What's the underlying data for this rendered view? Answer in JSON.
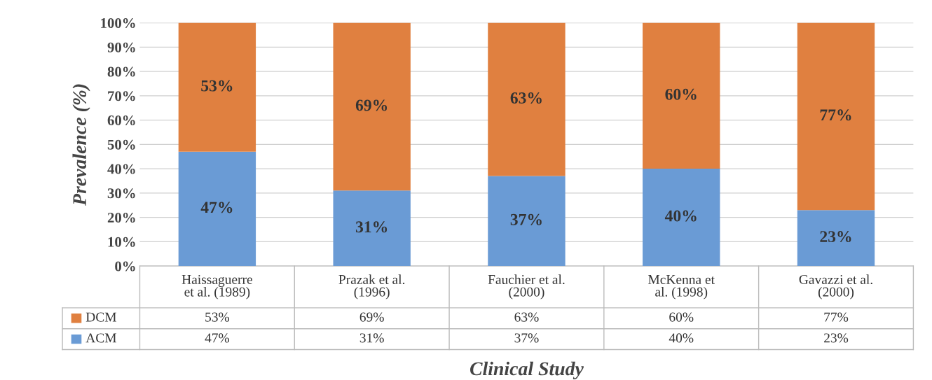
{
  "chart_data": {
    "type": "bar",
    "stacked": true,
    "xlabel": "Clinical Study",
    "ylabel": "Prevalence (%)",
    "categories": [
      "Haissaguerre\net al. (1989)",
      "Prazak et al.\n(1996)",
      "Fauchier et al.\n(2000)",
      "McKenna et\nal. (1998)",
      "Gavazzi et al.\n(2000)"
    ],
    "series": [
      {
        "name": "ACM",
        "color": "#6a9bd5",
        "values": [
          47,
          31,
          37,
          40,
          23
        ],
        "value_labels": [
          "47%",
          "31%",
          "37%",
          "40%",
          "23%"
        ]
      },
      {
        "name": "DCM",
        "color": "#e08040",
        "values": [
          53,
          69,
          63,
          60,
          77
        ],
        "value_labels": [
          "53%",
          "69%",
          "63%",
          "60%",
          "77%"
        ]
      }
    ],
    "ylim": [
      0,
      100
    ],
    "yticks": [
      {
        "value": 0,
        "label": "0%"
      },
      {
        "value": 10,
        "label": "10%"
      },
      {
        "value": 20,
        "label": "20%"
      },
      {
        "value": 30,
        "label": "30%"
      },
      {
        "value": 40,
        "label": "40%"
      },
      {
        "value": 50,
        "label": "50%"
      },
      {
        "value": 60,
        "label": "60%"
      },
      {
        "value": 70,
        "label": "70%"
      },
      {
        "value": 80,
        "label": "80%"
      },
      {
        "value": 90,
        "label": "90%"
      },
      {
        "value": 100,
        "label": "100%"
      }
    ],
    "grid": "y",
    "legend": "bottom"
  }
}
